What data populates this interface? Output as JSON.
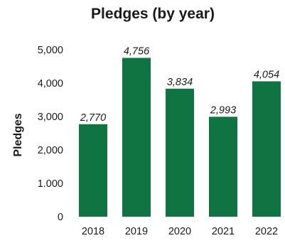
{
  "chart_data": {
    "type": "bar",
    "title": "Pledges (by year)",
    "xlabel": "",
    "ylabel": "Pledges",
    "categories": [
      "2018",
      "2019",
      "2020",
      "2021",
      "2022"
    ],
    "values": [
      2770,
      4756,
      3834,
      2993,
      4054
    ],
    "data_labels": [
      "2,770",
      "4,756",
      "3,834",
      "2,993",
      "4,054"
    ],
    "ylim": [
      0,
      5000
    ],
    "yticks": [
      0,
      1000,
      2000,
      3000,
      4000,
      5000
    ],
    "ytick_labels": [
      "0",
      "1.000",
      "2,000",
      "3,000",
      "4,000",
      "5,000"
    ],
    "grid": false,
    "legend": "none",
    "bar_color": "#0f7342"
  }
}
